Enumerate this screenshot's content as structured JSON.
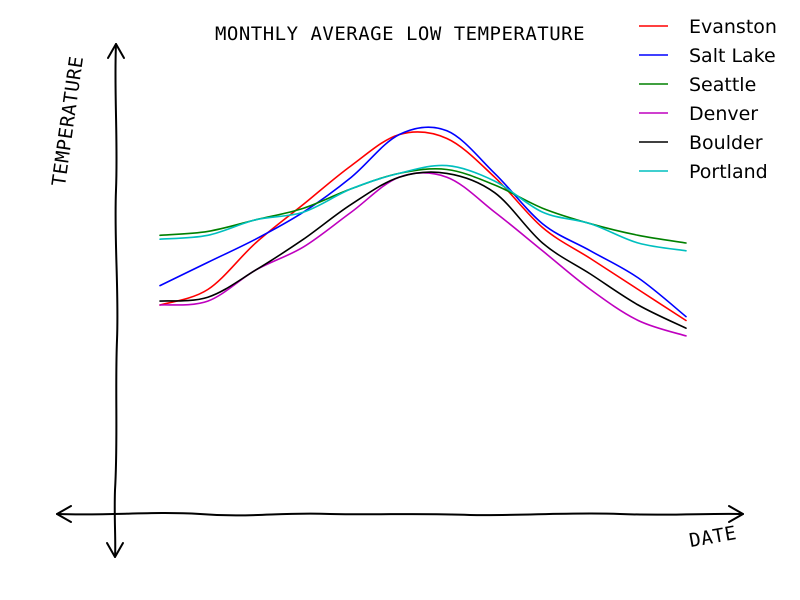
{
  "chart_data": {
    "type": "line",
    "title": "MONTHLY AVERAGE LOW TEMPERATURE",
    "xlabel": "DATE",
    "ylabel": "TEMPERATURE",
    "xlim": [
      1,
      12
    ],
    "ylim": [
      -38,
      86
    ],
    "grid": false,
    "legend_position": "top-right",
    "x": [
      1,
      2,
      3,
      4,
      5,
      6,
      7,
      8,
      9,
      10,
      11,
      12
    ],
    "series": [
      {
        "name": "Evanston",
        "color": "#ff0000",
        "values": [
          16,
          20,
          32,
          42,
          52,
          60,
          59,
          49,
          36,
          28,
          20,
          12
        ]
      },
      {
        "name": "Salt Lake",
        "color": "#0000ff",
        "values": [
          21,
          27,
          33,
          40,
          49,
          60,
          61,
          50,
          37,
          30,
          23,
          13
        ]
      },
      {
        "name": "Seattle",
        "color": "#008000",
        "values": [
          34,
          35,
          38,
          41,
          46,
          50,
          51,
          47,
          41,
          37,
          34,
          32
        ]
      },
      {
        "name": "Denver",
        "color": "#bf00bf",
        "values": [
          16,
          17,
          25,
          31,
          40,
          49,
          49,
          40,
          30,
          20,
          12,
          8
        ]
      },
      {
        "name": "Boulder",
        "color": "#000000",
        "values": [
          17,
          18,
          25,
          33,
          42,
          49,
          50,
          45,
          32,
          24,
          16,
          10
        ]
      },
      {
        "name": "Portland",
        "color": "#00bfbf",
        "values": [
          33,
          34,
          38,
          40,
          46,
          50,
          52,
          48,
          40,
          37,
          32,
          30
        ]
      }
    ]
  }
}
